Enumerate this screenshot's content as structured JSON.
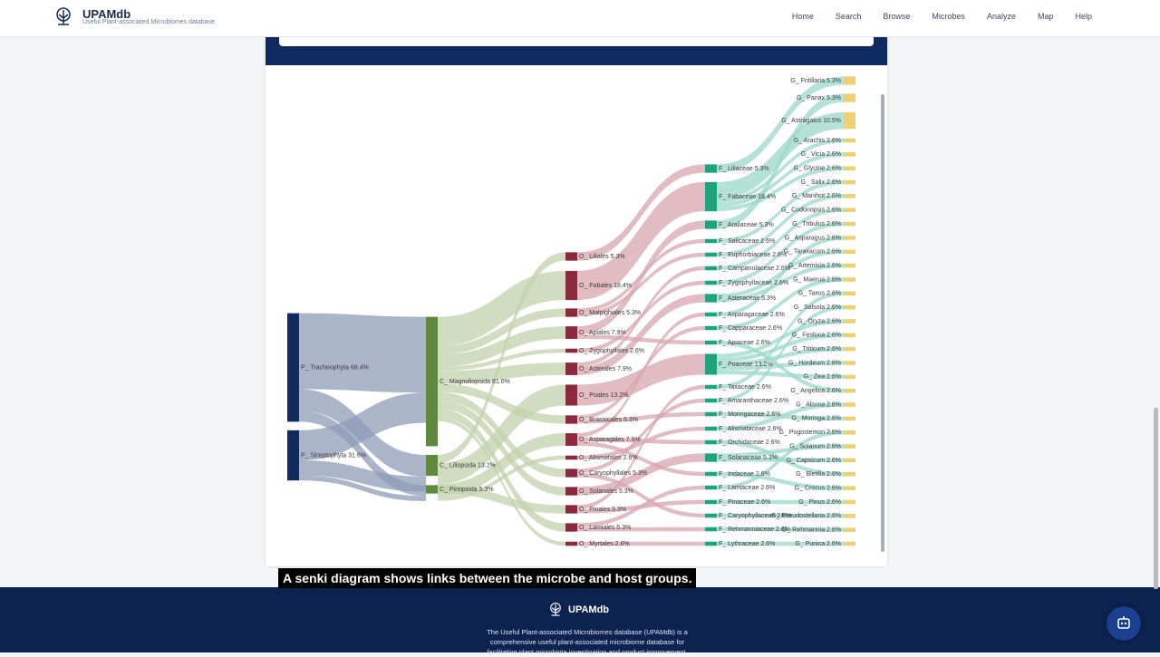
{
  "header": {
    "logo": "UPAMdb",
    "subtitle": "Useful Plant-associated Microbiomes database",
    "nav": [
      "Home",
      "Search",
      "Browse",
      "Microbes",
      "Analyze",
      "Map",
      "Help"
    ]
  },
  "sankey": {
    "columns": [
      {
        "nodes": [
          {
            "label": "P_ Tracheophyta 68.4%",
            "value": 68.4
          },
          {
            "label": "P_ Streptophyta 31.6%",
            "value": 31.6
          }
        ]
      },
      {
        "nodes": [
          {
            "label": "C_ Magnoliopsida 81.6%",
            "value": 81.6
          },
          {
            "label": "C_ Liliopsida 13.2%",
            "value": 13.2
          },
          {
            "label": "C_ Pinopsida 5.3%",
            "value": 5.3
          }
        ]
      },
      {
        "nodes": [
          {
            "label": "O_ Liliales 5.3%",
            "value": 5.3
          },
          {
            "label": "O_ Fabales 18.4%",
            "value": 18.4
          },
          {
            "label": "O_ Malpighiales 5.3%",
            "value": 5.3
          },
          {
            "label": "O_ Apiales 7.9%",
            "value": 7.9
          },
          {
            "label": "O_ Zygophyllales 2.6%",
            "value": 2.6
          },
          {
            "label": "O_ Asterales 7.9%",
            "value": 7.9
          },
          {
            "label": "O_ Poales 13.2%",
            "value": 13.2
          },
          {
            "label": "O_ Brassicales 5.3%",
            "value": 5.3
          },
          {
            "label": "O_ Asparagales 7.9%",
            "value": 7.9
          },
          {
            "label": "O_ Alismatales 2.6%",
            "value": 2.6
          },
          {
            "label": "O_ Caryophyllales 5.3%",
            "value": 5.3
          },
          {
            "label": "O_ Solanales 5.3%",
            "value": 5.3
          },
          {
            "label": "O_ Pinales 5.3%",
            "value": 5.3
          },
          {
            "label": "O_ Lamiales 5.3%",
            "value": 5.3
          },
          {
            "label": "O_ Myrtales 2.6%",
            "value": 2.6
          }
        ]
      },
      {
        "nodes": [
          {
            "label": "F_ Liliaceae 5.3%",
            "value": 5.3
          },
          {
            "label": "F_ Fabaceae 18.4%",
            "value": 18.4
          },
          {
            "label": "F_ Araliaceae 5.3%",
            "value": 5.3
          },
          {
            "label": "F_ Salicaceae 2.6%",
            "value": 2.6
          },
          {
            "label": "F_ Euphorbiaceae 2.6%",
            "value": 2.6
          },
          {
            "label": "F_ Campanulaceae 2.6%",
            "value": 2.6
          },
          {
            "label": "F_ Zygophyllaceae 2.6%",
            "value": 2.6
          },
          {
            "label": "F_ Asteraceae 5.3%",
            "value": 5.3
          },
          {
            "label": "F_ Asparagaceae 2.6%",
            "value": 2.6
          },
          {
            "label": "F_ Capparaceae 2.6%",
            "value": 2.6
          },
          {
            "label": "F_ Apiaceae 2.6%",
            "value": 2.6
          },
          {
            "label": "F_ Poaceae 13.2%",
            "value": 13.2
          },
          {
            "label": "F_ Taxaceae 2.6%",
            "value": 2.6
          },
          {
            "label": "F_ Amaranthaceae 2.6%",
            "value": 2.6
          },
          {
            "label": "F_ Moringaceae 2.6%",
            "value": 2.6
          },
          {
            "label": "F_ Alismataceae 2.6%",
            "value": 2.6
          },
          {
            "label": "F_ Orchidaceae 2.6%",
            "value": 2.6
          },
          {
            "label": "F_ Solanaceae 5.3%",
            "value": 5.3
          },
          {
            "label": "F_ Iridaceae 2.6%",
            "value": 2.6
          },
          {
            "label": "F_ Lamiaceae 2.6%",
            "value": 2.6
          },
          {
            "label": "F_ Pinaceae 2.6%",
            "value": 2.6
          },
          {
            "label": "F_ Caryophyllaceae 2.6%",
            "value": 2.6
          },
          {
            "label": "F_ Rehmanniaceae 2.6%",
            "value": 2.6
          },
          {
            "label": "F_ Lythraceae 2.6%",
            "value": 2.6
          }
        ]
      },
      {
        "nodes": [
          {
            "label": "G_ Fritillaria 5.3%",
            "value": 5.3
          },
          {
            "label": "G_ Panax 5.3%",
            "value": 5.3
          },
          {
            "label": "G_ Astragalus 10.5%",
            "value": 10.5
          },
          {
            "label": "G_ Arachis 2.6%",
            "value": 2.6
          },
          {
            "label": "G_ Vicia 2.6%",
            "value": 2.6
          },
          {
            "label": "G_ Glycine 2.6%",
            "value": 2.6
          },
          {
            "label": "G_ Salix 2.6%",
            "value": 2.6
          },
          {
            "label": "G_ Manihot 2.6%",
            "value": 2.6
          },
          {
            "label": "G_ Codonopsis 2.6%",
            "value": 2.6
          },
          {
            "label": "G_ Tribulus 2.6%",
            "value": 2.6
          },
          {
            "label": "G_ Asparagus 2.6%",
            "value": 2.6
          },
          {
            "label": "G_ Taraxacum 2.6%",
            "value": 2.6
          },
          {
            "label": "G_ Artemisia 2.6%",
            "value": 2.6
          },
          {
            "label": "G_ Maerua 2.6%",
            "value": 2.6
          },
          {
            "label": "G_ Taxus 2.6%",
            "value": 2.6
          },
          {
            "label": "G_ Salsola 2.6%",
            "value": 2.6
          },
          {
            "label": "G_ Oryza 2.6%",
            "value": 2.6
          },
          {
            "label": "G_ Festuca 2.6%",
            "value": 2.6
          },
          {
            "label": "G_ Triticum 2.6%",
            "value": 2.6
          },
          {
            "label": "G_ Hordeum 2.6%",
            "value": 2.6
          },
          {
            "label": "G_ Zea 2.6%",
            "value": 2.6
          },
          {
            "label": "G_ Angelica 2.6%",
            "value": 2.6
          },
          {
            "label": "G_ Alisma 2.6%",
            "value": 2.6
          },
          {
            "label": "G_ Moringa 2.6%",
            "value": 2.6
          },
          {
            "label": "G_ Pogostemon 2.6%",
            "value": 2.6
          },
          {
            "label": "G_ Solanum 2.6%",
            "value": 2.6
          },
          {
            "label": "G_ Capsicum 2.6%",
            "value": 2.6
          },
          {
            "label": "G_ Bletilla 2.6%",
            "value": 2.6
          },
          {
            "label": "G_ Crocus 2.6%",
            "value": 2.6
          },
          {
            "label": "G_ Pinus 2.6%",
            "value": 2.6
          },
          {
            "label": "G_ Pseudostellaria 2.6%",
            "value": 2.6
          },
          {
            "label": "G_ Rehmannia 2.6%",
            "value": 2.6
          },
          {
            "label": "G_ Punica 2.6%",
            "value": 2.6
          }
        ]
      }
    ]
  },
  "caption": "A senki diagram shows links between the microbe and host groups.",
  "footer": {
    "logo": "UPAMdb",
    "description": [
      "The Useful Plant-associated Microbiomes database (UPAMdb) is a",
      "comprehensive useful plant-associated microbiome database for",
      "facilitating plant microbiota investigation and product improvement."
    ]
  }
}
